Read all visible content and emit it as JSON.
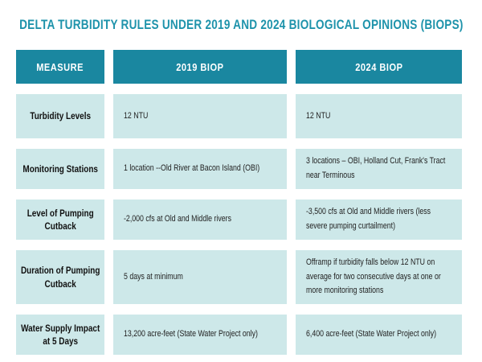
{
  "title": "DELTA TURBIDITY RULES UNDER 2019 AND 2024 BIOLOGICAL OPINIONS (BIOPS)",
  "colors": {
    "title_text": "#1e93ab",
    "header_bg": "#1a87a0",
    "header_text": "#ffffff",
    "cell_bg": "#cde8e9",
    "cell_text": "#222222",
    "measure_text": "#111111",
    "page_bg": "#ffffff"
  },
  "table": {
    "columns": [
      "MEASURE",
      "2019 BIOP",
      "2024 BIOP"
    ],
    "rows": [
      {
        "measure": "Turbidity Levels",
        "biop2019": "12 NTU",
        "biop2024": "12 NTU"
      },
      {
        "measure": "Monitoring Stations",
        "biop2019": "1 location --Old River at Bacon Island (OBI)",
        "biop2024": "3 locations – OBI, Holland Cut, Frank's Tract near Terminous"
      },
      {
        "measure": "Level of Pumping Cutback",
        "biop2019": "-2,000 cfs at Old and Middle rivers",
        "biop2024": "-3,500 cfs at Old and Middle rivers (less severe pumping curtailment)"
      },
      {
        "measure": "Duration of Pumping Cutback",
        "biop2019": "5 days at minimum",
        "biop2024": "Offramp if turbidity falls below 12 NTU on average for two consecutive days at one or more monitoring stations"
      },
      {
        "measure": "Water Supply Impact at 5 Days",
        "biop2019": "13,200 acre-feet (State Water Project only)",
        "biop2024": "6,400 acre-feet (State Water Project only)"
      }
    ]
  },
  "chart_data": {
    "type": "table",
    "title": "DELTA TURBIDITY RULES UNDER 2019 AND 2024 BIOLOGICAL OPINIONS (BIOPS)",
    "columns": [
      "MEASURE",
      "2019 BIOP",
      "2024 BIOP"
    ],
    "rows": [
      [
        "Turbidity Levels",
        "12 NTU",
        "12 NTU"
      ],
      [
        "Monitoring Stations",
        "1 location --Old River at Bacon Island (OBI)",
        "3 locations – OBI, Holland Cut, Frank's Tract near Terminous"
      ],
      [
        "Level of Pumping Cutback",
        "-2,000 cfs at Old and Middle rivers",
        "-3,500 cfs at Old and Middle rivers (less severe pumping curtailment)"
      ],
      [
        "Duration of Pumping Cutback",
        "5 days at minimum",
        "Offramp if turbidity falls below 12 NTU on average for two consecutive days at one or more monitoring stations"
      ],
      [
        "Water Supply Impact at 5 Days",
        "13,200 acre-feet (State Water Project only)",
        "6,400 acre-feet (State Water Project only)"
      ]
    ]
  }
}
